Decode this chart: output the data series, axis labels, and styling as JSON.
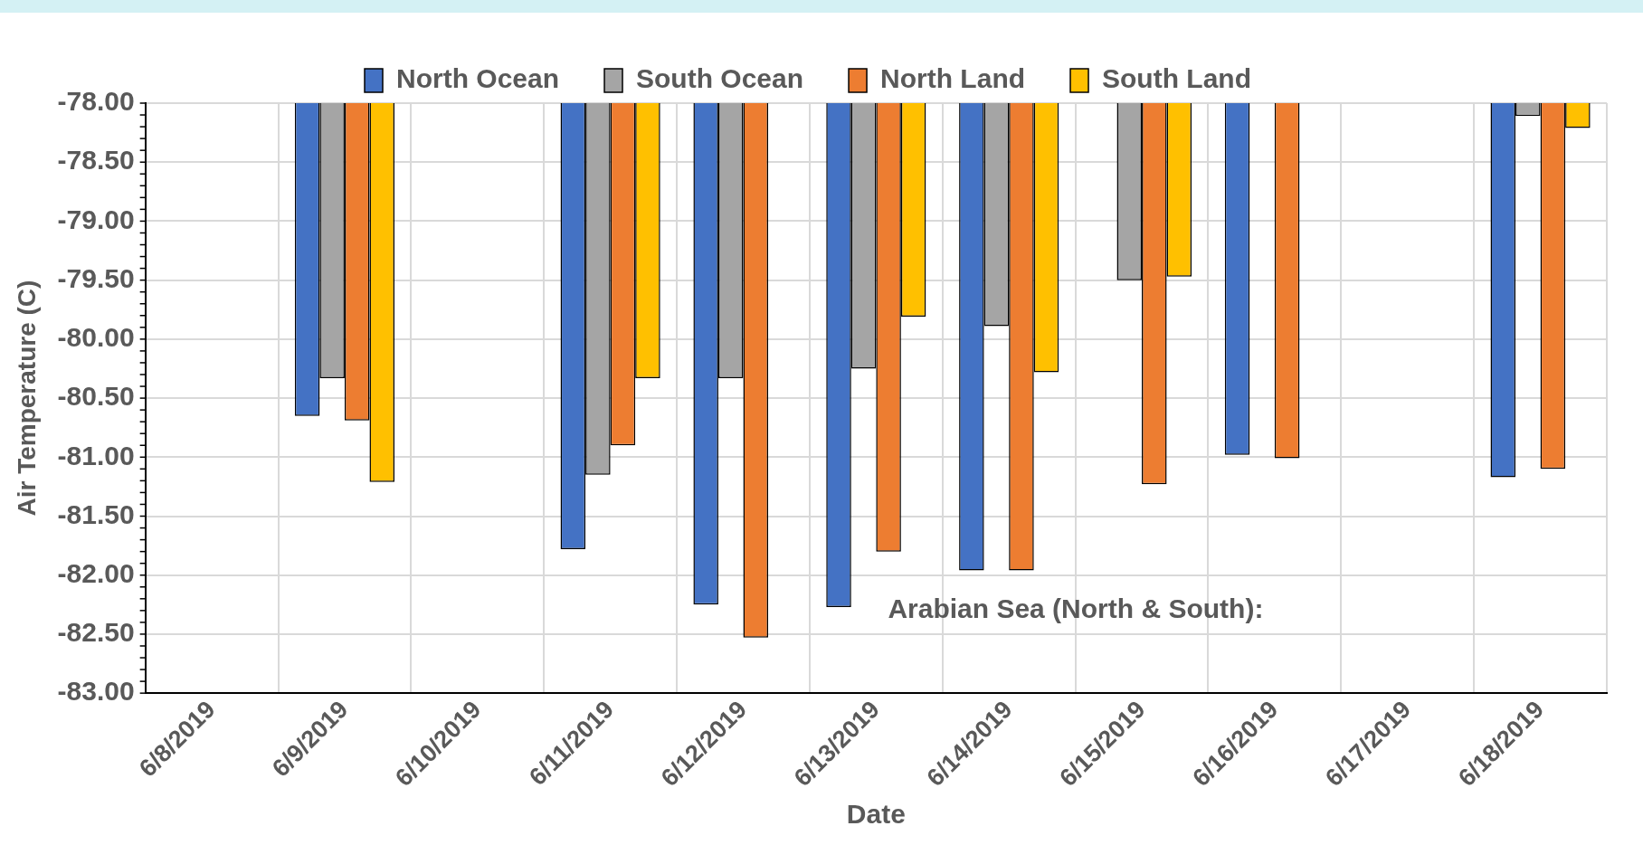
{
  "chart_data": {
    "type": "bar",
    "xlabel": "Date",
    "ylabel": "Air Temperature (C)",
    "categories": [
      "6/8/2019",
      "6/9/2019",
      "6/10/2019",
      "6/11/2019",
      "6/12/2019",
      "6/13/2019",
      "6/14/2019",
      "6/15/2019",
      "6/16/2019",
      "6/17/2019",
      "6/18/2019"
    ],
    "series": [
      {
        "name": "North Ocean",
        "color": "#4472c4",
        "values": [
          null,
          -80.65,
          null,
          -81.78,
          -82.25,
          -82.27,
          -81.96,
          null,
          -80.98,
          null,
          -81.17
        ]
      },
      {
        "name": "South Ocean",
        "color": "#a5a5a5",
        "values": [
          null,
          -80.33,
          null,
          -81.15,
          -80.33,
          -80.25,
          -79.89,
          -79.5,
          null,
          null,
          -78.11
        ]
      },
      {
        "name": "North Land",
        "color": "#ed7d31",
        "values": [
          null,
          -80.69,
          null,
          -80.9,
          -82.53,
          -81.8,
          -81.96,
          -81.23,
          -81.01,
          null,
          -81.1
        ]
      },
      {
        "name": "South Land",
        "color": "#ffc000",
        "values": [
          null,
          -81.21,
          null,
          -80.33,
          null,
          -79.81,
          -80.28,
          -79.47,
          null,
          null,
          -78.21
        ]
      }
    ],
    "ylim": [
      -83,
      -78
    ],
    "yticks": [
      {
        "value": -83,
        "label": "-83.00"
      },
      {
        "value": -82.5,
        "label": "-82.50"
      },
      {
        "value": -82,
        "label": "-82.00"
      },
      {
        "value": -81.5,
        "label": "-81.50"
      },
      {
        "value": -81,
        "label": "-81.00"
      },
      {
        "value": -80.5,
        "label": "-80.50"
      },
      {
        "value": -80,
        "label": "-80.00"
      },
      {
        "value": -79.5,
        "label": "-79.50"
      },
      {
        "value": -79,
        "label": "-79.00"
      },
      {
        "value": -78.5,
        "label": "-78.50"
      },
      {
        "value": -78,
        "label": "-78.00"
      }
    ],
    "grid": true,
    "legend": "top",
    "annotations": [
      "Arabian Sea (North & South):"
    ]
  }
}
